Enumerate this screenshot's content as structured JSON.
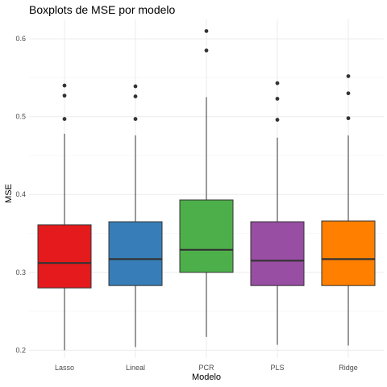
{
  "chart_data": {
    "type": "boxplot",
    "title": "Boxplots de MSE por modelo",
    "xlabel": "Modelo",
    "ylabel": "MSE",
    "ylim": [
      0.19,
      0.625
    ],
    "yticks": [
      0.2,
      0.3,
      0.4,
      0.5,
      0.6
    ],
    "ytick_labels": [
      "0.2",
      "0.3",
      "0.4",
      "0.5",
      "0.6"
    ],
    "grid": true,
    "legend": "none",
    "categories": [
      "Lasso",
      "Lineal",
      "PCR",
      "PLS",
      "Ridge"
    ],
    "colors": [
      "#e41a1c",
      "#377eb8",
      "#4daf4a",
      "#984ea3",
      "#ff7f00"
    ],
    "boxes": [
      {
        "name": "Lasso",
        "whisker_low": 0.2,
        "q1": 0.28,
        "median": 0.312,
        "q3": 0.361,
        "whisker_high": 0.478,
        "outliers": [
          0.497,
          0.527,
          0.54
        ]
      },
      {
        "name": "Lineal",
        "whisker_low": 0.204,
        "q1": 0.283,
        "median": 0.317,
        "q3": 0.365,
        "whisker_high": 0.476,
        "outliers": [
          0.497,
          0.526,
          0.539
        ]
      },
      {
        "name": "PCR",
        "whisker_low": 0.217,
        "q1": 0.3,
        "median": 0.329,
        "q3": 0.393,
        "whisker_high": 0.525,
        "outliers": [
          0.585,
          0.61
        ]
      },
      {
        "name": "PLS",
        "whisker_low": 0.207,
        "q1": 0.283,
        "median": 0.315,
        "q3": 0.365,
        "whisker_high": 0.473,
        "outliers": [
          0.496,
          0.523,
          0.543
        ]
      },
      {
        "name": "Ridge",
        "whisker_low": 0.206,
        "q1": 0.283,
        "median": 0.317,
        "q3": 0.366,
        "whisker_high": 0.476,
        "outliers": [
          0.498,
          0.53,
          0.552
        ]
      }
    ]
  }
}
